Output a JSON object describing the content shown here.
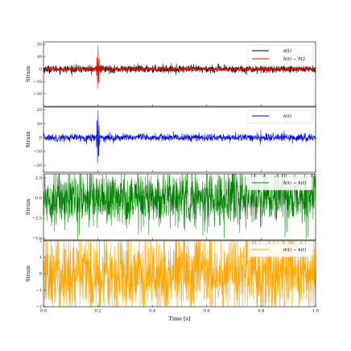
{
  "chart_data": [
    {
      "type": "line",
      "panel": "top",
      "ylabel": "Strain",
      "ylim": [
        -30,
        22
      ],
      "yticks": [
        20,
        10,
        0,
        -10,
        -20
      ],
      "ytick_labels": [
        "20",
        "10",
        "0",
        "−10",
        "−20"
      ],
      "series": [
        {
          "name": "d(t)",
          "color": "#000000",
          "noise_amplitude": 1.6,
          "burst": {
            "center": 0.2,
            "amplitude": 7
          }
        },
        {
          "name": "ĥ(t) − M2",
          "color": "#ff0000",
          "noise_amplitude": 0.8,
          "burst": {
            "center": 0.2,
            "amplitude": 18
          }
        }
      ],
      "legend_position": "top-right"
    },
    {
      "type": "line",
      "panel": "second",
      "ylabel": "Strain",
      "ylim": [
        -25,
        22
      ],
      "yticks": [
        20,
        10,
        0,
        -10,
        -20
      ],
      "ytick_labels": [
        "20",
        "10",
        "0",
        "−10",
        "−20"
      ],
      "series": [
        {
          "name": "h(t)",
          "color": "#0000ff",
          "noise_amplitude": 1.4,
          "burst": {
            "center": 0.2,
            "amplitude": 19
          }
        }
      ],
      "legend_position": "top-right"
    },
    {
      "type": "line",
      "panel": "third",
      "ylabel": "Strain",
      "ylim": [
        -5.2,
        3.0
      ],
      "yticks": [
        2.5,
        0.0,
        -2.5,
        -5.0
      ],
      "ytick_labels": [
        "2.5",
        "0.0",
        "−2.5",
        "−5.0"
      ],
      "series": [
        {
          "name": "ĥ(t) − h(t)",
          "color": "#008000",
          "noise_amplitude": 1.7
        }
      ],
      "legend_position": "top-right"
    },
    {
      "type": "line",
      "panel": "bottom",
      "ylabel": "Strain",
      "ylim": [
        -2,
        2
      ],
      "yticks": [
        2,
        1,
        0,
        -1,
        -2
      ],
      "ytick_labels": [
        "2",
        "1",
        "0",
        "−1",
        "−2"
      ],
      "series": [
        {
          "name": "d(t) − h(t)",
          "color": "#ffa500",
          "noise_amplitude": 1.3
        }
      ],
      "legend_position": "top-right"
    }
  ],
  "shared_x": {
    "xlabel": "Time [s]",
    "xlim": [
      0.0,
      1.0
    ],
    "xticks": [
      0.0,
      0.2,
      0.4,
      0.6,
      0.8,
      1.0
    ],
    "xtick_labels": [
      "0.0",
      "0.2",
      "0.4",
      "0.6",
      "0.8",
      "1.0"
    ]
  }
}
